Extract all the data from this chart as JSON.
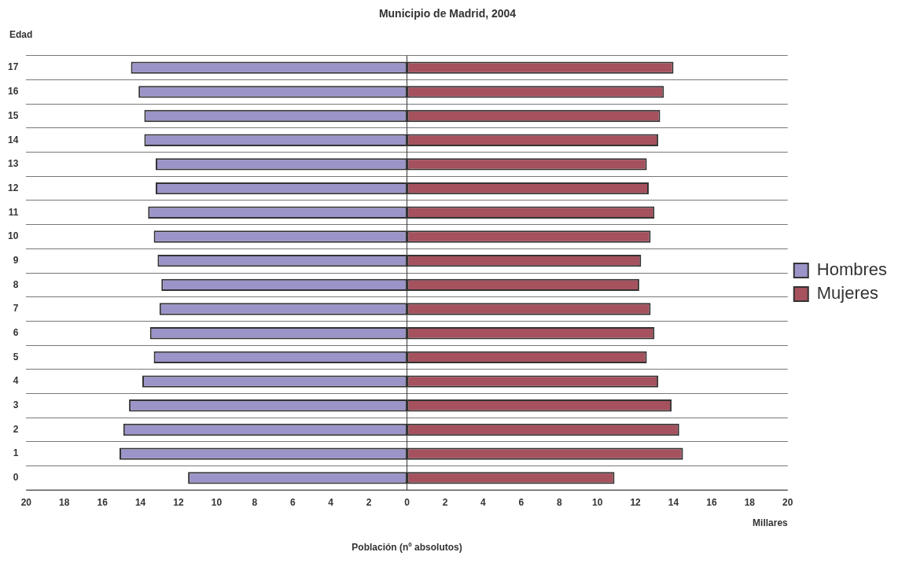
{
  "chart_data": {
    "type": "bar",
    "orientation": "horizontal",
    "stacked": true,
    "title": "Municipio de Madrid, 2004",
    "ylabel": "Edad",
    "xlabel": "Población (nº absolutos)",
    "annotations": [
      "Millares"
    ],
    "categories": [
      "17",
      "16",
      "15",
      "14",
      "13",
      "12",
      "11",
      "10",
      "9",
      "8",
      "7",
      "6",
      "5",
      "4",
      "3",
      "2",
      "1",
      "0"
    ],
    "series": [
      {
        "name": "Hombres",
        "color": "#9b94c8",
        "values": [
          -14.5,
          -14.1,
          -13.8,
          -13.8,
          -13.2,
          -13.2,
          -13.6,
          -13.3,
          -13.1,
          -12.9,
          -13.0,
          -13.5,
          -13.3,
          -13.9,
          -14.6,
          -14.9,
          -15.1,
          -11.5
        ]
      },
      {
        "name": "Mujeres",
        "color": "#a5515e",
        "values": [
          14.0,
          13.5,
          13.3,
          13.2,
          12.6,
          12.7,
          13.0,
          12.8,
          12.3,
          12.2,
          12.8,
          13.0,
          12.6,
          13.2,
          13.9,
          14.3,
          14.5,
          10.9
        ]
      }
    ],
    "xlim": [
      -20,
      20
    ],
    "xticks": [
      {
        "value": -20,
        "label": "20"
      },
      {
        "value": -18,
        "label": "18"
      },
      {
        "value": -16,
        "label": "16"
      },
      {
        "value": -14,
        "label": "14"
      },
      {
        "value": -12,
        "label": "12"
      },
      {
        "value": -10,
        "label": "10"
      },
      {
        "value": -8,
        "label": "8"
      },
      {
        "value": -6,
        "label": "6"
      },
      {
        "value": -4,
        "label": "4"
      },
      {
        "value": -2,
        "label": "2"
      },
      0,
      2,
      4,
      6,
      8,
      10,
      12,
      14,
      16,
      18,
      20
    ],
    "grid": "y",
    "legend": "right"
  }
}
